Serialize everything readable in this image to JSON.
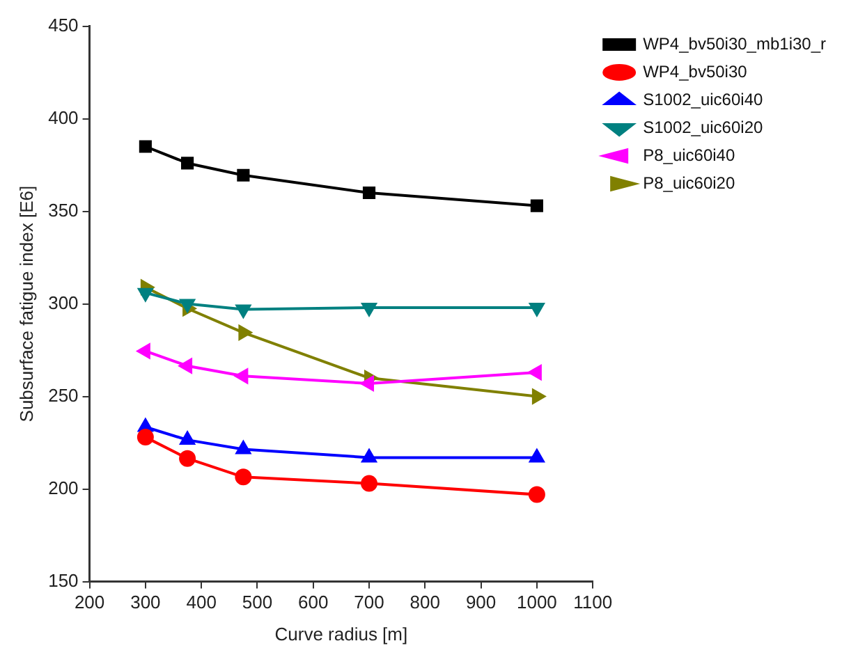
{
  "chart_data": {
    "type": "line",
    "xlabel": "Curve radius [m]",
    "ylabel": "Subsurface fatigue index [E6]",
    "x": [
      300,
      375,
      475,
      700,
      1000
    ],
    "xlim": [
      200,
      1100
    ],
    "xticks": [
      200,
      300,
      400,
      500,
      600,
      700,
      800,
      900,
      1000,
      1100
    ],
    "ylim": [
      150,
      450
    ],
    "yticks": [
      150,
      200,
      250,
      300,
      350,
      400,
      450
    ],
    "grid": false,
    "legend": "top right",
    "line_style": "solid",
    "series": [
      {
        "name": "WP4_bv50i30_mb1i30_r",
        "color": "#000000",
        "marker": "square",
        "values": [
          385,
          376,
          369.5,
          360,
          353
        ]
      },
      {
        "name": "WP4_bv50i30",
        "color": "#ff0000",
        "marker": "circle",
        "values": [
          228,
          216.5,
          206.5,
          203,
          197
        ]
      },
      {
        "name": "S1002_uic60i40",
        "color": "#0000ff",
        "marker": "triangle",
        "values": [
          233.5,
          226.5,
          221.5,
          217,
          217
        ]
      },
      {
        "name": "S1002_uic60i20",
        "color": "#008080",
        "marker": "triangle-down",
        "values": [
          306,
          300,
          297,
          298,
          298
        ]
      },
      {
        "name": "P8_uic60i40",
        "color": "#ff00ff",
        "marker": "triangle-left",
        "values": [
          274.5,
          266.5,
          261,
          257,
          263
        ]
      },
      {
        "name": "P8_uic60i20",
        "color": "#808000",
        "marker": "triangle-right",
        "values": [
          309,
          297.5,
          284.5,
          260,
          250
        ]
      }
    ]
  }
}
